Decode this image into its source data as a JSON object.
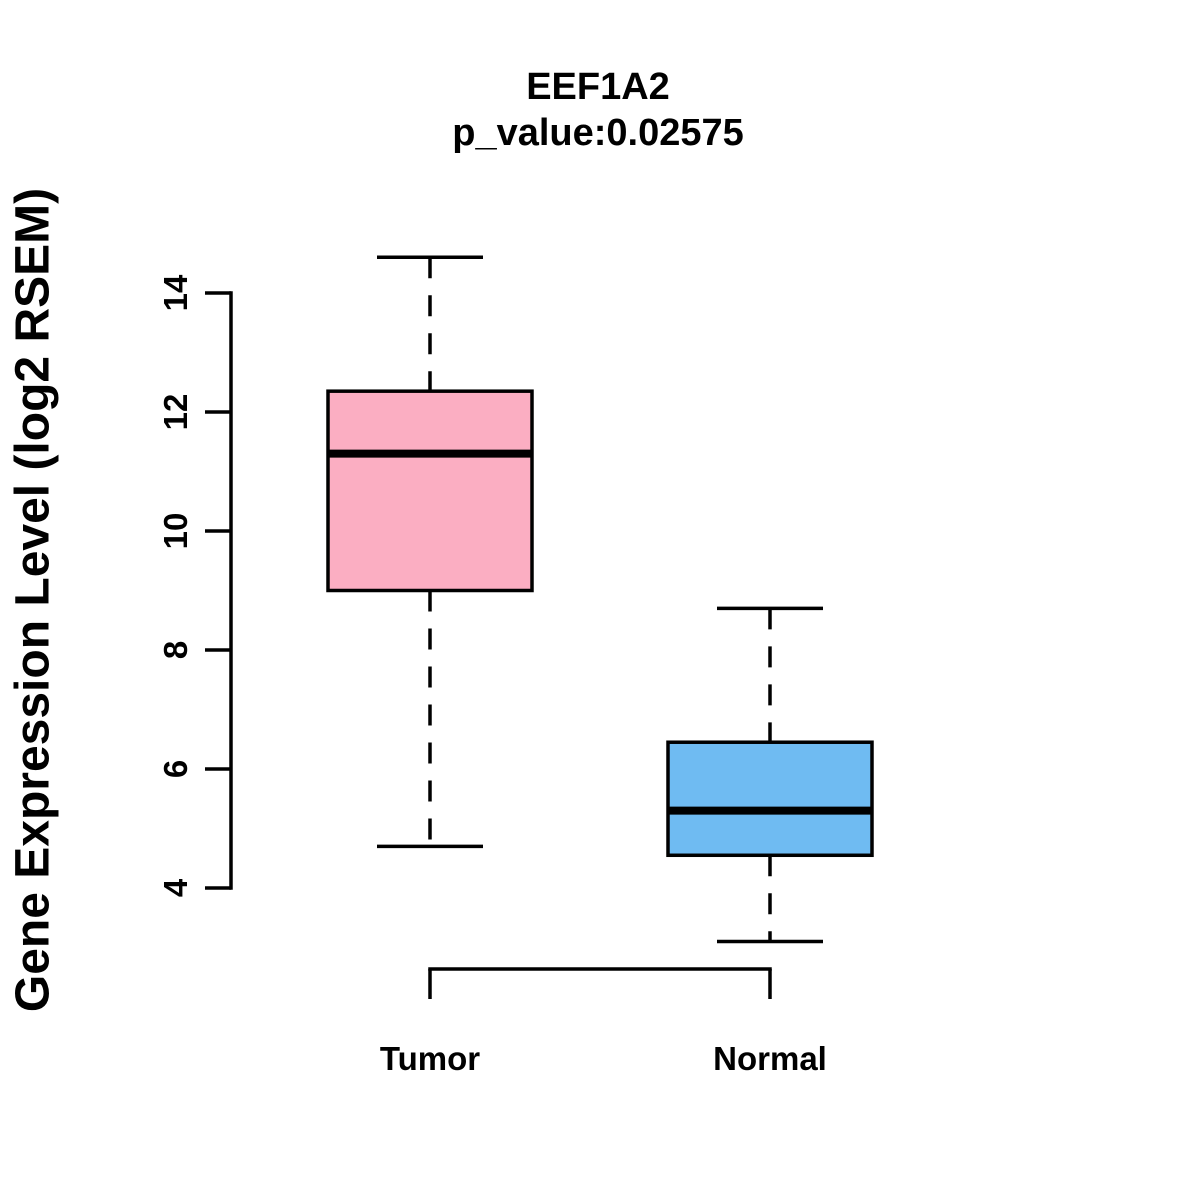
{
  "page": {
    "background_color": "#ffffff",
    "text_color": "#000000"
  },
  "chart_data": {
    "type": "boxplot",
    "title": "EEF1A2",
    "subtitle": "p_value:0.02575",
    "p_value": 0.02575,
    "gene": "EEF1A2",
    "xlabel": "",
    "ylabel": "Gene Expression Level (log2 RSEM)",
    "ylim": [
      3.0,
      14.8
    ],
    "yticks": [
      4,
      6,
      8,
      10,
      12,
      14
    ],
    "grid": false,
    "legend_position": "none",
    "axis_color": "#000000",
    "categories": [
      "Tumor",
      "Normal"
    ],
    "series": [
      {
        "name": "Tumor",
        "fill_color": "#fbaec2",
        "whisker_low": 4.7,
        "q1": 9.0,
        "median": 11.3,
        "q3": 12.35,
        "whisker_high": 14.6
      },
      {
        "name": "Normal",
        "fill_color": "#6fbbf2",
        "whisker_low": 3.1,
        "q1": 4.55,
        "median": 5.3,
        "q3": 6.45,
        "whisker_high": 8.7
      }
    ]
  }
}
